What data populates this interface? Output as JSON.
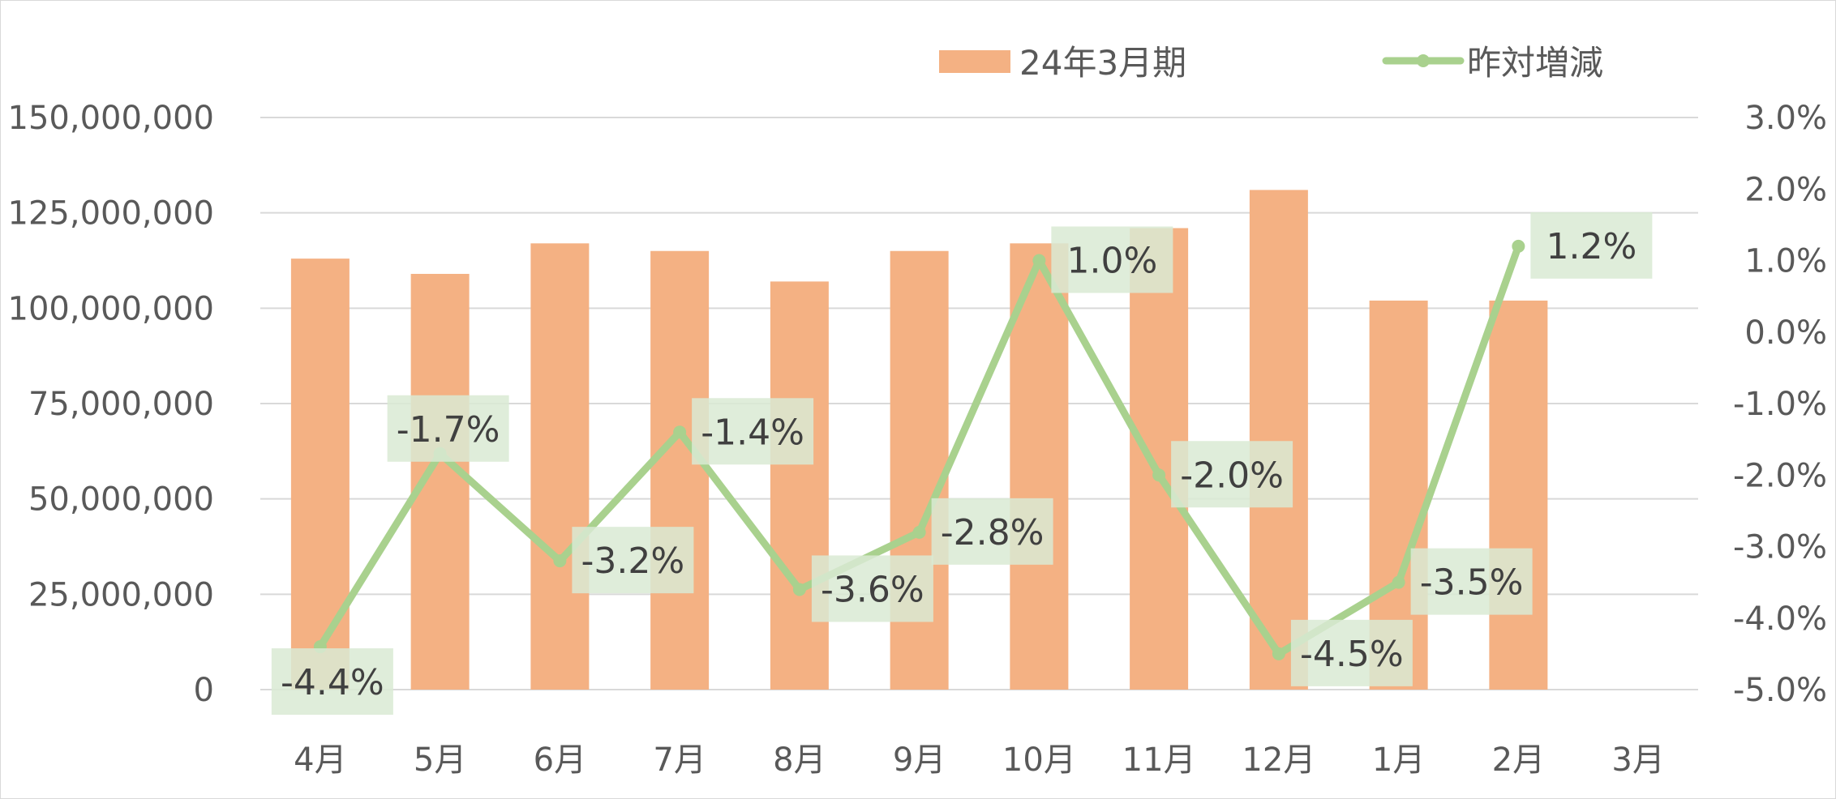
{
  "chart_data": {
    "type": "bar",
    "categories": [
      "4月",
      "5月",
      "6月",
      "7月",
      "8月",
      "9月",
      "10月",
      "11月",
      "12月",
      "1月",
      "2月",
      "3月"
    ],
    "series": [
      {
        "name": "24年3月期",
        "kind": "bar",
        "axis": "left",
        "color": "#F4B183",
        "values": [
          113000000,
          109000000,
          117000000,
          115000000,
          107000000,
          115000000,
          117000000,
          121000000,
          131000000,
          102000000,
          102000000,
          null
        ]
      },
      {
        "name": "昨対増減",
        "kind": "line",
        "axis": "right",
        "color": "#A9D18E",
        "values": [
          -4.4,
          -1.7,
          -3.2,
          -1.4,
          -3.6,
          -2.8,
          1.0,
          -2.0,
          -4.5,
          -3.5,
          1.2,
          null
        ],
        "data_labels": [
          "-4.4%",
          "-1.7%",
          "-3.2%",
          "-1.4%",
          "-3.6%",
          "-2.8%",
          "1.0%",
          "-2.0%",
          "-4.5%",
          "-3.5%",
          "1.2%",
          null
        ]
      }
    ],
    "y_left": {
      "ylim": [
        0,
        150000000
      ],
      "ticks": [
        0,
        25000000,
        50000000,
        75000000,
        100000000,
        125000000,
        150000000
      ],
      "tick_labels": [
        "0",
        "25,000,000",
        "50,000,000",
        "75,000,000",
        "100,000,000",
        "125,000,000",
        "150,000,000"
      ]
    },
    "y_right": {
      "ylim": [
        -5.0,
        3.0
      ],
      "ticks": [
        -5,
        -4,
        -3,
        -2,
        -1,
        0,
        1,
        2,
        3
      ],
      "tick_labels": [
        "-5.0%",
        "-4.0%",
        "-3.0%",
        "-2.0%",
        "-1.0%",
        "0.0%",
        "1.0%",
        "2.0%",
        "3.0%"
      ]
    },
    "grid": true,
    "legend_position": "top-right",
    "colors": {
      "label_box": "#D9EAD3",
      "gridline": "#D9D9D9",
      "tick_text": "#595959",
      "data_label_text": "#404040"
    }
  }
}
